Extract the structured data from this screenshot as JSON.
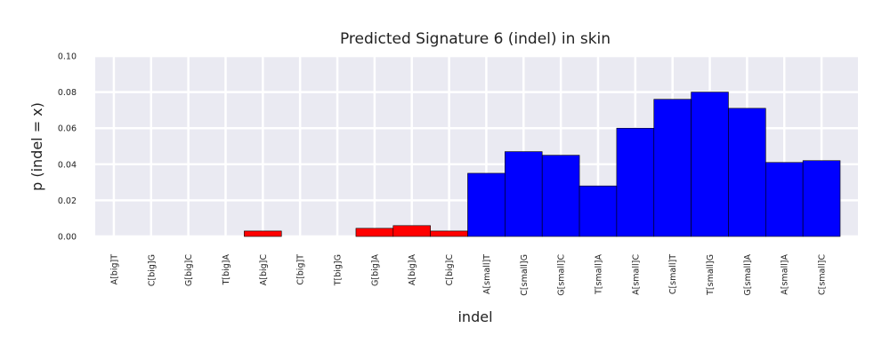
{
  "chart_data": {
    "type": "bar",
    "title": "Predicted Signature 6 (indel) in skin",
    "xlabel": "indel",
    "ylabel": "p (indel = x)",
    "ylim": [
      0,
      0.1
    ],
    "yticks": [
      "0.00",
      "0.02",
      "0.04",
      "0.06",
      "0.08",
      "0.10"
    ],
    "grid": true,
    "categories": [
      "A[big]T",
      "C[big]G",
      "G[big]C",
      "T[big]A",
      "A[big]C",
      "C[big]T",
      "T[big]G",
      "G[big]A",
      "A[big]A",
      "C[big]C",
      "A[small]T",
      "C[small]G",
      "G[small]C",
      "T[small]A",
      "A[small]C",
      "C[small]T",
      "T[small]G",
      "G[small]A",
      "A[small]A",
      "C[small]C"
    ],
    "values": [
      0,
      0,
      0,
      0,
      0.003,
      0,
      0,
      0.0045,
      0.006,
      0.003,
      0.035,
      0.047,
      0.045,
      0.028,
      0.06,
      0.076,
      0.08,
      0.071,
      0.041,
      0.042
    ],
    "colors": [
      "#ff0000",
      "#ff0000",
      "#ff0000",
      "#ff0000",
      "#ff0000",
      "#ff0000",
      "#ff0000",
      "#ff0000",
      "#ff0000",
      "#ff0000",
      "#0000ff",
      "#0000ff",
      "#0000ff",
      "#0000ff",
      "#0000ff",
      "#0000ff",
      "#0000ff",
      "#0000ff",
      "#0000ff",
      "#0000ff"
    ],
    "background": "#eaeaf2"
  }
}
